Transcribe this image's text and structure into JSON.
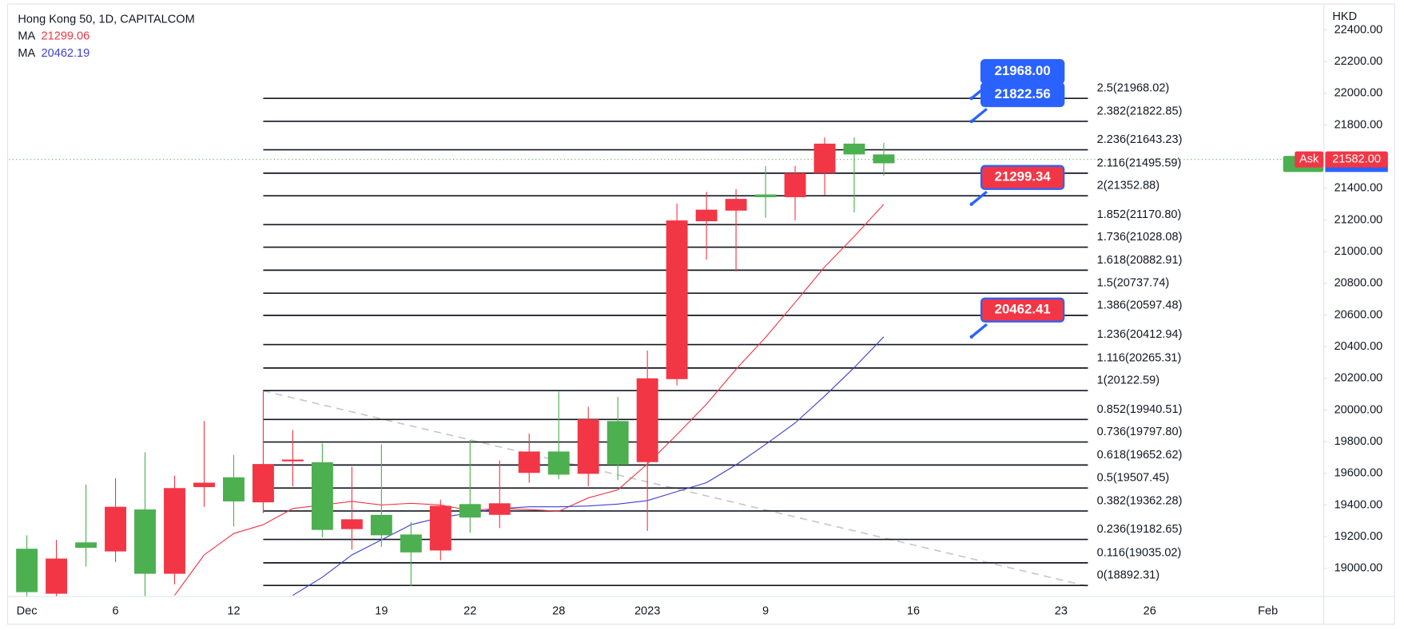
{
  "chart_data": {
    "type": "candlestick",
    "title": "Hong Kong 50, 1D, CAPITALCOM",
    "axis_unit": "HKD",
    "categories": [
      "Dec",
      null,
      null,
      "6",
      null,
      null,
      null,
      "12",
      null,
      null,
      null,
      null,
      "19",
      null,
      null,
      "22",
      null,
      null,
      "28",
      null,
      null,
      "2023",
      null,
      null,
      null,
      "9",
      null,
      null,
      null,
      null,
      "16",
      null,
      null,
      null,
      null,
      "23",
      null,
      null,
      "26",
      null,
      null,
      null,
      "Feb"
    ],
    "open": [
      18850,
      19062,
      19130,
      19389,
      18966,
      19507,
      19541,
      19423,
      19659,
      19687,
      19243,
      19310,
      19209,
      19101,
      19395,
      19321,
      19411,
      19738,
      19592,
      19941,
      19654,
      20200,
      21197,
      21265,
      21333,
      21344,
      21496,
      21682,
      21614,
      21558,
      null,
      null,
      null,
      null,
      null,
      null,
      null,
      null,
      null,
      null,
      null,
      null,
      null
    ],
    "high": [
      19209,
      19180,
      19530,
      19569,
      19733,
      19586,
      19930,
      19716,
      20127,
      19873,
      19789,
      19642,
      19783,
      19293,
      19434,
      19811,
      19682,
      19851,
      20116,
      20020,
      20082,
      20375,
      21304,
      21378,
      21395,
      21541,
      21541,
      21721,
      21721,
      21688,
      null,
      null,
      null,
      null,
      null,
      null,
      null,
      null,
      null,
      null,
      null,
      null,
      null
    ],
    "low": [
      18800,
      18800,
      19011,
      19040,
      18825,
      18899,
      19389,
      19265,
      19349,
      19518,
      19197,
      19118,
      19135,
      18887,
      19051,
      19225,
      19254,
      19541,
      19563,
      19518,
      19558,
      19237,
      20155,
      20949,
      20876,
      21214,
      21197,
      21355,
      21248,
      21479,
      null,
      null,
      null,
      null,
      null,
      null,
      null,
      null,
      null,
      null,
      null,
      null,
      null
    ],
    "close": [
      19124,
      18840,
      19164,
      19107,
      19372,
      18966,
      19513,
      19575,
      19417,
      19676,
      19670,
      19248,
      19338,
      19214,
      19113,
      19406,
      19338,
      19603,
      19738,
      19597,
      19930,
      19671,
      20195,
      21192,
      21259,
      21361,
      21344,
      21496,
      21682,
      21614,
      null,
      null,
      null,
      null,
      null,
      null,
      null,
      null,
      null,
      null,
      null,
      null,
      null
    ],
    "up_color": "#4caf50",
    "down_color": "#f23645",
    "series": [
      {
        "name": "MA",
        "color": "#f23645",
        "last_label": "21299.06",
        "values": [
          null,
          null,
          null,
          null,
          null,
          18830,
          19085,
          19220,
          19276,
          19378,
          19400,
          19423,
          19400,
          19411,
          19400,
          19366,
          19378,
          19372,
          19361,
          19445,
          19496,
          19659,
          19845,
          20037,
          20257,
          20459,
          20679,
          20904,
          21096,
          21299.06,
          null,
          null,
          null,
          null,
          null,
          null,
          null,
          null,
          null,
          null,
          null,
          null,
          null
        ]
      },
      {
        "name": "MA",
        "color": "#3f3fd0",
        "last_label": "20462.19",
        "values": [
          null,
          null,
          null,
          null,
          null,
          null,
          null,
          null,
          null,
          18830,
          18944,
          19085,
          19180,
          19276,
          19321,
          19350,
          19378,
          19389,
          19389,
          19394,
          19406,
          19428,
          19485,
          19541,
          19654,
          19783,
          19918,
          20088,
          20268,
          20462.19,
          null,
          null,
          null,
          null,
          null,
          null,
          null,
          null,
          null,
          null,
          null,
          null,
          null
        ]
      }
    ],
    "fib_levels": [
      {
        "value": 21968.02,
        "label": "2.5(21968.02)"
      },
      {
        "value": 21822.85,
        "label": "2.382(21822.85)"
      },
      {
        "value": 21643.23,
        "label": "2.236(21643.23)"
      },
      {
        "value": 21495.59,
        "label": "2.116(21495.59)"
      },
      {
        "value": 21352.88,
        "label": "2(21352.88)"
      },
      {
        "value": 21170.8,
        "label": "1.852(21170.80)"
      },
      {
        "value": 21028.08,
        "label": "1.736(21028.08)"
      },
      {
        "value": 20882.91,
        "label": "1.618(20882.91)"
      },
      {
        "value": 20737.74,
        "label": "1.5(20737.74)"
      },
      {
        "value": 20597.48,
        "label": "1.386(20597.48)"
      },
      {
        "value": 20412.94,
        "label": "1.236(20412.94)"
      },
      {
        "value": 20265.31,
        "label": "1.116(20265.31)"
      },
      {
        "value": 20122.59,
        "label": "1(20122.59)"
      },
      {
        "value": 19940.51,
        "label": "0.852(19940.51)"
      },
      {
        "value": 19797.8,
        "label": "0.736(19797.80)"
      },
      {
        "value": 19652.62,
        "label": "0.618(19652.62)"
      },
      {
        "value": 19507.45,
        "label": "0.5(19507.45)"
      },
      {
        "value": 19362.28,
        "label": "0.382(19362.28)"
      },
      {
        "value": 19182.65,
        "label": "0.236(19182.65)"
      },
      {
        "value": 19035.02,
        "label": "0.116(19035.02)"
      },
      {
        "value": 18892.31,
        "label": "0(18892.31)"
      }
    ],
    "annotations": [
      {
        "value": 21968.0,
        "label": "21968.00",
        "color": "#2962ff"
      },
      {
        "value": 21822.56,
        "label": "21822.56",
        "color": "#2962ff"
      },
      {
        "value": 21299.34,
        "label": "21299.34",
        "color": "#f23645"
      },
      {
        "value": 20462.41,
        "label": "20462.41",
        "color": "#f23645"
      }
    ],
    "ask": {
      "label": "Ask",
      "value": 21582.0,
      "value_label": "21582.00",
      "color": "#f23645"
    },
    "ylim": [
      18825,
      22589
    ],
    "yticks": [
      {
        "value": 19000,
        "label": "19000.00"
      },
      {
        "value": 19200,
        "label": "19200.00"
      },
      {
        "value": 19400,
        "label": "19400.00"
      },
      {
        "value": 19600,
        "label": "19600.00"
      },
      {
        "value": 19800,
        "label": "19800.00"
      },
      {
        "value": 20000,
        "label": "20000.00"
      },
      {
        "value": 20200,
        "label": "20200.00"
      },
      {
        "value": 20400,
        "label": "20400.00"
      },
      {
        "value": 20600,
        "label": "20600.00"
      },
      {
        "value": 20800,
        "label": "20800.00"
      },
      {
        "value": 21000,
        "label": "21000.00"
      },
      {
        "value": 21200,
        "label": "21200.00"
      },
      {
        "value": 21400,
        "label": "21400.00"
      },
      {
        "value": 21600,
        "label": "21600.00"
      },
      {
        "value": 21800,
        "label": "21800.00"
      },
      {
        "value": 22000,
        "label": "22000.00"
      },
      {
        "value": 22200,
        "label": "22200.00"
      },
      {
        "value": 22400,
        "label": "22400.00"
      }
    ],
    "grid": false
  }
}
